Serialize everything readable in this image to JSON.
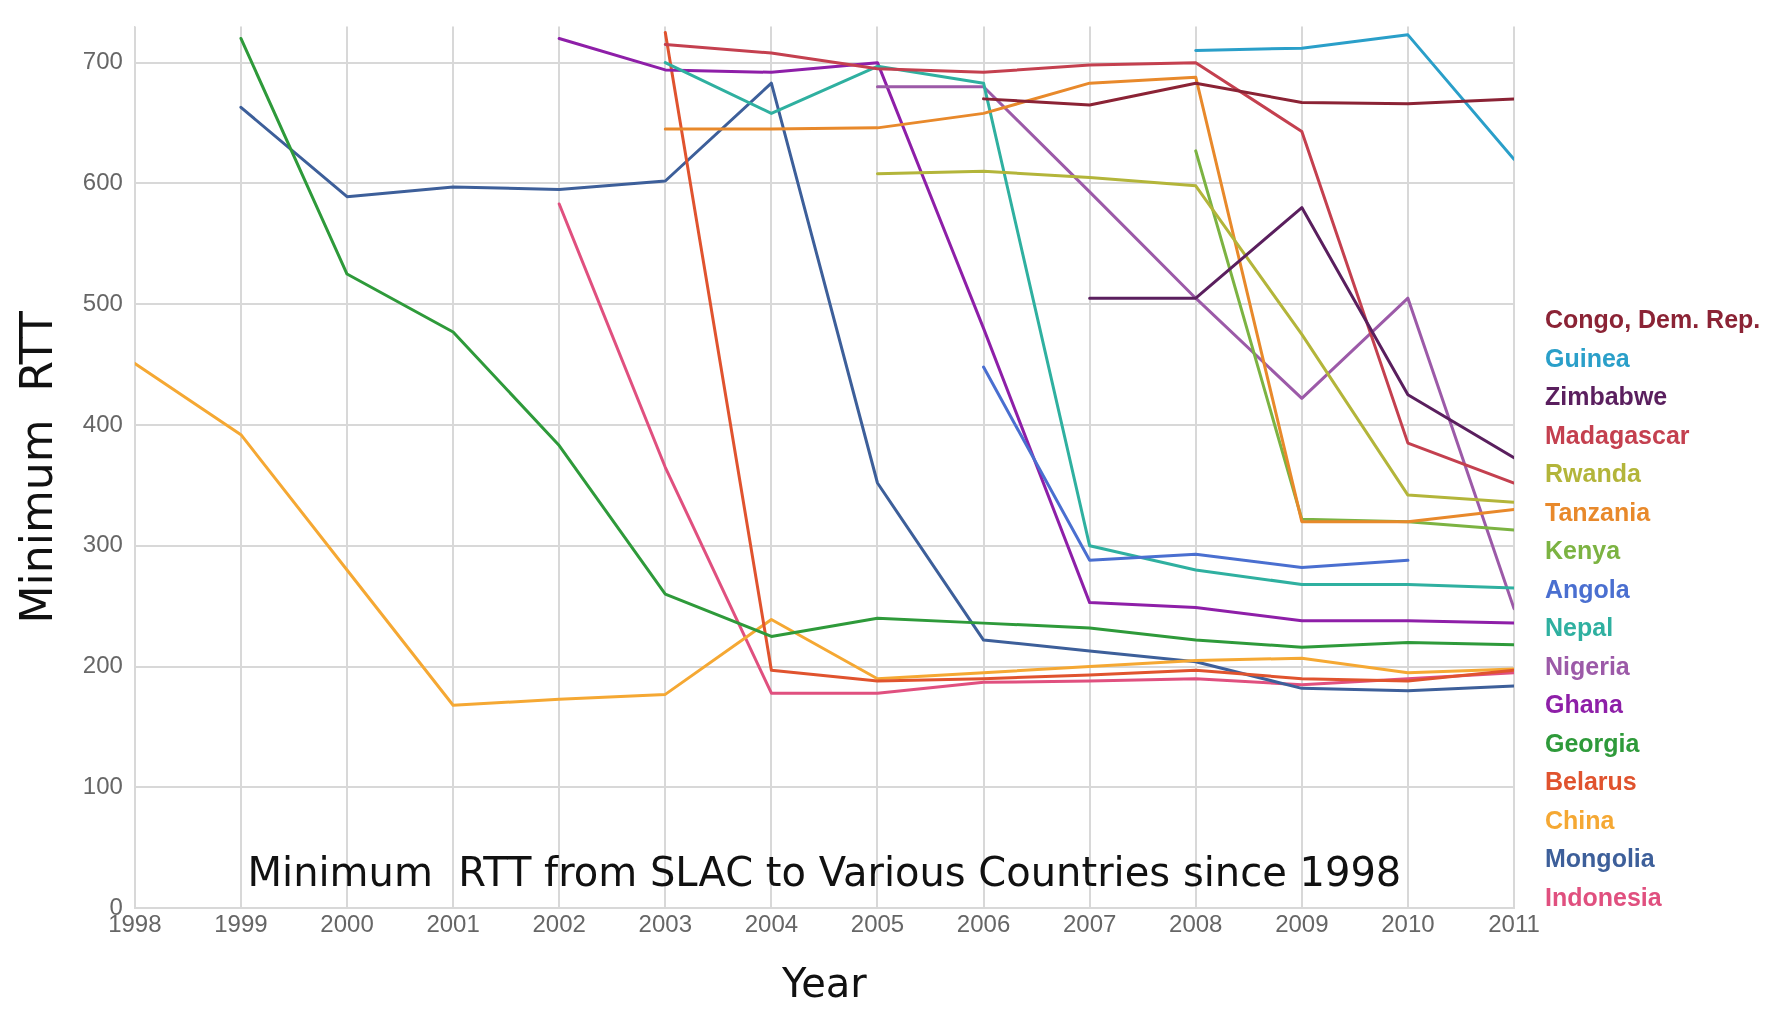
{
  "chart_data": {
    "type": "line",
    "title": "Minimum  RTT from SLAC to Various Countries since 1998",
    "xlabel": "Year",
    "ylabel": "Minimum  RTT",
    "x": [
      1998,
      1999,
      2000,
      2001,
      2002,
      2003,
      2004,
      2005,
      2006,
      2007,
      2008,
      2009,
      2010,
      2011
    ],
    "xlim": [
      1998,
      2011
    ],
    "xticks": [
      1998,
      1999,
      2000,
      2001,
      2002,
      2003,
      2004,
      2005,
      2006,
      2007,
      2008,
      2009,
      2010,
      2011
    ],
    "ylim": [
      0,
      730
    ],
    "yticks": [
      0,
      100,
      200,
      300,
      400,
      500,
      600,
      700
    ],
    "grid": true,
    "legend": "right",
    "marker": "none",
    "line_style": "solid",
    "series": [
      {
        "name": "Congo, Dem. Rep.",
        "color": "#8b2335",
        "values": [
          null,
          null,
          null,
          null,
          null,
          null,
          null,
          null,
          670,
          665,
          683,
          667,
          666,
          670
        ]
      },
      {
        "name": "Guinea",
        "color": "#2a9fc9",
        "values": [
          null,
          null,
          null,
          null,
          null,
          null,
          null,
          null,
          null,
          null,
          710,
          712,
          723,
          620
        ]
      },
      {
        "name": "Zimbabwe",
        "color": "#5a1f5e",
        "values": [
          null,
          null,
          null,
          null,
          null,
          null,
          null,
          null,
          null,
          505,
          505,
          580,
          425,
          373
        ]
      },
      {
        "name": "Madagascar",
        "color": "#c4404f",
        "values": [
          null,
          null,
          null,
          null,
          null,
          715,
          708,
          695,
          692,
          698,
          700,
          643,
          385,
          352
        ]
      },
      {
        "name": "Rwanda",
        "color": "#b3b53a",
        "values": [
          null,
          null,
          null,
          null,
          null,
          null,
          null,
          608,
          610,
          605,
          598,
          475,
          342,
          336
        ]
      },
      {
        "name": "Tanzania",
        "color": "#e8892b",
        "values": [
          null,
          null,
          null,
          null,
          null,
          645,
          645,
          646,
          658,
          683,
          688,
          320,
          320,
          330
        ]
      },
      {
        "name": "Kenya",
        "color": "#7cb342",
        "values": [
          null,
          null,
          null,
          null,
          null,
          null,
          null,
          null,
          null,
          null,
          627,
          322,
          320,
          313
        ]
      },
      {
        "name": "Angola",
        "color": "#4a6fd0",
        "values": [
          null,
          null,
          null,
          null,
          null,
          null,
          null,
          null,
          448,
          288,
          293,
          282,
          288,
          null
        ]
      },
      {
        "name": "Nepal",
        "color": "#2fb0a0",
        "values": [
          null,
          null,
          null,
          null,
          null,
          700,
          658,
          697,
          683,
          300,
          280,
          268,
          268,
          265
        ]
      },
      {
        "name": "Nigeria",
        "color": "#9c5aa8",
        "values": [
          null,
          null,
          null,
          null,
          null,
          null,
          null,
          680,
          680,
          593,
          505,
          422,
          505,
          248
        ]
      },
      {
        "name": "Ghana",
        "color": "#8e1fa8",
        "values": [
          null,
          null,
          null,
          null,
          720,
          694,
          692,
          700,
          480,
          253,
          249,
          238,
          238,
          236
        ]
      },
      {
        "name": "Georgia",
        "color": "#2e9a3a",
        "values": [
          null,
          720,
          525,
          477,
          383,
          260,
          225,
          240,
          236,
          232,
          222,
          216,
          220,
          218
        ]
      },
      {
        "name": "Belarus",
        "color": "#e0532e",
        "values": [
          null,
          null,
          null,
          null,
          null,
          725,
          197,
          188,
          190,
          193,
          197,
          190,
          188,
          197
        ]
      },
      {
        "name": "China",
        "color": "#f5a833",
        "values": [
          451,
          392,
          280,
          168,
          173,
          177,
          239,
          190,
          195,
          200,
          205,
          207,
          195,
          198
        ]
      },
      {
        "name": "Mongolia",
        "color": "#3d5f9a",
        "values": [
          null,
          663,
          589,
          597,
          595,
          602,
          683,
          352,
          222,
          213,
          204,
          182,
          180,
          184
        ]
      },
      {
        "name": "Indonesia",
        "color": "#e0507f",
        "values": [
          null,
          null,
          null,
          null,
          583,
          365,
          178,
          178,
          187,
          188,
          190,
          185,
          190,
          195
        ]
      }
    ]
  }
}
